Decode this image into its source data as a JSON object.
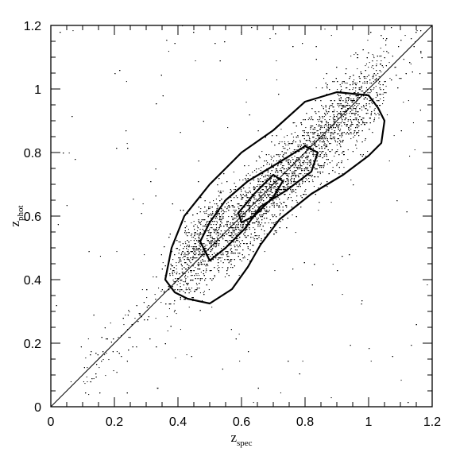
{
  "chart_data": {
    "type": "scatter",
    "title": "",
    "xlabel": "z",
    "xlabel_subscript": "spec",
    "ylabel": "z",
    "ylabel_subscript": "phot",
    "xlim": [
      0,
      1.2
    ],
    "ylim": [
      0,
      1.2
    ],
    "xticks": [
      "0",
      "0.2",
      "0.4",
      "0.6",
      "0.8",
      "1",
      "1.2"
    ],
    "yticks": [
      "0",
      "0.2",
      "0.4",
      "0.6",
      "0.8",
      "1",
      "1.2"
    ],
    "grid": false,
    "legend": "none",
    "reference_line": {
      "x": [
        0,
        1.2
      ],
      "y": [
        0,
        1.2
      ]
    },
    "scatter_model": {
      "point_count": 9000,
      "relation": "z_phot ≈ z_spec",
      "dominant_range_z_spec": [
        0.4,
        1.0
      ],
      "dominant_range_z_phot": [
        0.35,
        1.0
      ]
    },
    "contours": [
      {
        "level": "outer",
        "x": [
          0.38,
          0.42,
          0.5,
          0.6,
          0.7,
          0.8,
          0.9,
          1.0,
          1.03,
          1.05,
          1.04,
          1.0,
          0.92,
          0.82,
          0.72,
          0.66,
          0.62,
          0.57,
          0.5,
          0.43,
          0.39,
          0.36,
          0.37,
          0.38
        ],
        "y": [
          0.5,
          0.6,
          0.7,
          0.8,
          0.87,
          0.96,
          0.99,
          0.98,
          0.94,
          0.9,
          0.83,
          0.79,
          0.73,
          0.67,
          0.59,
          0.51,
          0.44,
          0.37,
          0.325,
          0.34,
          0.36,
          0.4,
          0.45,
          0.5
        ]
      },
      {
        "level": "middle",
        "x": [
          0.47,
          0.5,
          0.55,
          0.62,
          0.72,
          0.8,
          0.84,
          0.82,
          0.74,
          0.66,
          0.61,
          0.55,
          0.5,
          0.47
        ],
        "y": [
          0.52,
          0.58,
          0.65,
          0.71,
          0.77,
          0.82,
          0.8,
          0.74,
          0.68,
          0.63,
          0.56,
          0.5,
          0.46,
          0.52
        ]
      },
      {
        "level": "inner",
        "x": [
          0.59,
          0.64,
          0.7,
          0.73,
          0.7,
          0.64,
          0.6,
          0.59
        ],
        "y": [
          0.61,
          0.67,
          0.73,
          0.71,
          0.66,
          0.6,
          0.58,
          0.61
        ]
      }
    ],
    "colors": {
      "points": "#000000",
      "lines": "#000000",
      "background": "#ffffff"
    }
  }
}
